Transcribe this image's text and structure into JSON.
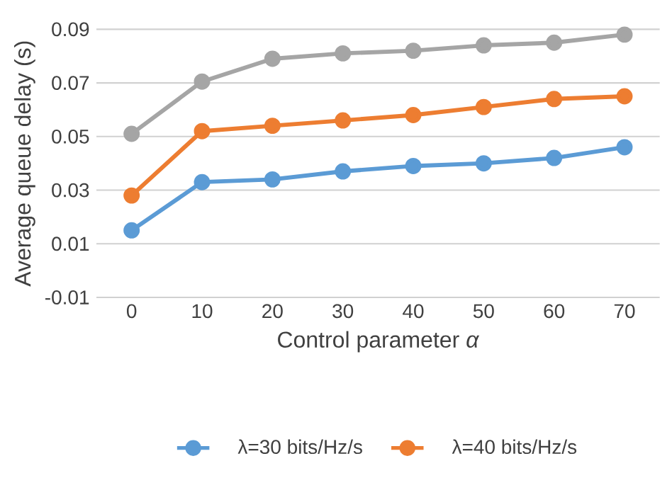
{
  "chart_data": {
    "type": "line",
    "xlabel": "Control parameter *α*",
    "ylabel": "Average queue delay (s)",
    "categories": [
      "0",
      "10",
      "20",
      "30",
      "40",
      "50",
      "60",
      "70"
    ],
    "series": [
      {
        "name": "λ=30 bits/Hz/s",
        "color": "#5b9bd5",
        "values": [
          0.015,
          0.033,
          0.034,
          0.037,
          0.039,
          0.04,
          0.042,
          0.046
        ]
      },
      {
        "name": "λ=40 bits/Hz/s",
        "color": "#ed7d31",
        "values": [
          0.028,
          0.052,
          0.054,
          0.056,
          0.058,
          0.061,
          0.064,
          0.065
        ]
      },
      {
        "color": "#a5a5a5",
        "values": [
          0.051,
          0.0705,
          0.079,
          0.081,
          0.082,
          0.084,
          0.085,
          0.088
        ]
      }
    ],
    "ylim": [
      -0.01,
      0.09
    ],
    "yticks": [
      {
        "value": -0.01,
        "label": "-0.01"
      },
      {
        "value": 0.01,
        "label": "0.01"
      },
      {
        "value": 0.03,
        "label": "0.03"
      },
      {
        "value": 0.05,
        "label": "0.05"
      },
      {
        "value": 0.07,
        "label": "0.07"
      },
      {
        "value": 0.09,
        "label": "0.09"
      }
    ],
    "grid": "y",
    "legend": "bottom",
    "marker": "circle",
    "line_style": "solid"
  }
}
